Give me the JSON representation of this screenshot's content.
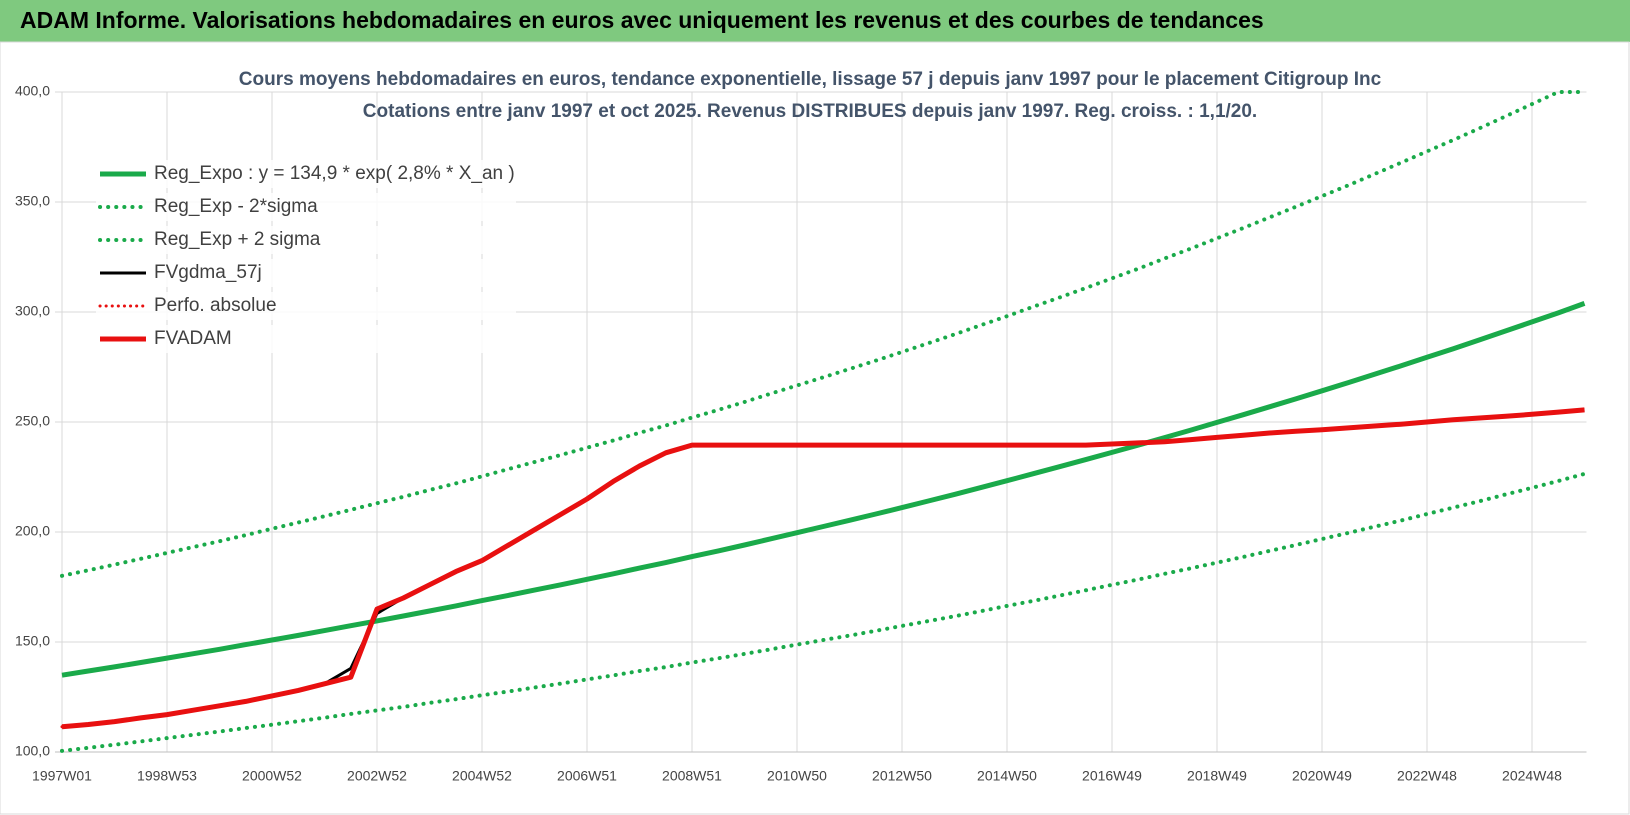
{
  "header": {
    "title": "ADAM Informe. Valorisations hebdomadaires en euros avec uniquement les revenus et des courbes de tendances"
  },
  "chart_data": {
    "type": "line",
    "title": "Cours moyens hebdomadaires en euros, tendance exponentielle, lissage 57 j depuis janv 1997 pour le placement Citigroup Inc",
    "subtitle": "Cotations entre janv 1997 et oct 2025. Revenus DISTRIBUES depuis janv 1997. Reg. croiss. : 1,1/20.",
    "categories": [
      "1997W01",
      null,
      null,
      null,
      "1998W53",
      null,
      null,
      null,
      "2000W52",
      null,
      null,
      null,
      "2002W52",
      null,
      null,
      null,
      "2004W52",
      null,
      null,
      null,
      "2006W51",
      null,
      null,
      null,
      "2008W51",
      null,
      null,
      null,
      "2010W50",
      null,
      null,
      null,
      "2012W50",
      null,
      null,
      null,
      "2014W50",
      null,
      null,
      null,
      "2016W49",
      null,
      null,
      null,
      "2018W49",
      null,
      null,
      null,
      "2020W49",
      null,
      null,
      null,
      "2022W48",
      null,
      null,
      null,
      "2024W48",
      null,
      null
    ],
    "ylim": [
      100,
      400
    ],
    "yticks": [
      {
        "value": 100,
        "label": "100,0"
      },
      {
        "value": 150,
        "label": "150,0"
      },
      {
        "value": 200,
        "label": "200,0"
      },
      {
        "value": 250,
        "label": "250,0"
      },
      {
        "value": 300,
        "label": "300,0"
      },
      {
        "value": 350,
        "label": "350,0"
      },
      {
        "value": 400,
        "label": "400,0"
      }
    ],
    "grid": true,
    "legend": "upper-left",
    "series": [
      {
        "name": "Reg_Expo : y = 134,9 * exp( 2,8% *  X_an )",
        "color": "#1aaa4a",
        "style": "solid",
        "width": 5,
        "values": [
          134.9,
          136.8,
          138.7,
          140.7,
          142.7,
          144.7,
          146.7,
          148.8,
          150.9,
          153.0,
          155.2,
          157.4,
          159.6,
          161.8,
          164.1,
          166.4,
          168.8,
          171.2,
          173.6,
          176.0,
          178.5,
          181.0,
          183.6,
          186.1,
          188.8,
          191.4,
          194.1,
          196.9,
          199.7,
          202.5,
          205.3,
          208.2,
          211.1,
          214.1,
          217.1,
          220.2,
          223.3,
          226.5,
          229.7,
          232.9,
          236.2,
          239.5,
          242.9,
          246.3,
          249.8,
          253.3,
          256.9,
          260.5,
          264.2,
          267.9,
          271.7,
          275.5,
          279.4,
          283.3,
          287.3,
          291.4,
          295.5,
          299.6,
          303.9
        ]
      },
      {
        "name": "Reg_Exp - 2*sigma",
        "color": "#1aaa4a",
        "style": "dotted",
        "width": 4,
        "values": [
          100.5,
          101.9,
          103.3,
          104.8,
          106.3,
          107.8,
          109.3,
          110.9,
          112.4,
          114.0,
          115.6,
          117.3,
          118.9,
          120.5,
          122.3,
          124.0,
          125.8,
          127.5,
          129.3,
          131.1,
          133.0,
          134.8,
          136.8,
          138.6,
          140.7,
          142.6,
          144.6,
          146.7,
          148.8,
          150.9,
          152.9,
          155.1,
          157.3,
          159.5,
          161.7,
          164.0,
          166.4,
          168.7,
          171.1,
          173.5,
          176.0,
          178.4,
          181.0,
          183.5,
          186.1,
          188.7,
          191.4,
          194.1,
          196.8,
          199.6,
          202.4,
          205.2,
          208.2,
          211.1,
          214.0,
          217.1,
          220.1,
          223.2,
          226.4
        ]
      },
      {
        "name": "Reg_Exp + 2 sigma",
        "color": "#1aaa4a",
        "style": "dotted",
        "width": 4,
        "values": [
          180.1,
          182.6,
          185.2,
          187.8,
          190.5,
          193.2,
          195.8,
          198.6,
          201.5,
          204.3,
          207.2,
          210.1,
          213.1,
          216.0,
          219.1,
          222.1,
          225.3,
          228.6,
          231.8,
          235.0,
          238.3,
          241.6,
          245.1,
          248.4,
          252.0,
          255.5,
          259.1,
          262.9,
          266.6,
          270.3,
          274.1,
          277.9,
          281.8,
          285.8,
          289.8,
          294.0,
          298.1,
          302.4,
          306.6,
          310.9,
          315.3,
          319.7,
          324.3,
          328.8,
          333.5,
          338.2,
          343.0,
          347.8,
          352.7,
          357.6,
          362.7,
          367.8,
          373.0,
          378.2,
          383.5,
          389.0,
          394.5,
          400,
          400
        ]
      },
      {
        "name": "FVgdma_57j",
        "color": "#000000",
        "style": "solid",
        "width": 3,
        "values": [
          111.5,
          112.5,
          113.8,
          115.5,
          117,
          119,
          121,
          123,
          125.5,
          128,
          131,
          138,
          163,
          170,
          176,
          182,
          187,
          194,
          201,
          208,
          215,
          223,
          230,
          236,
          239.5,
          239.5,
          239.5,
          239.5,
          239.5,
          239.5,
          239.5,
          239.5,
          239.5,
          239.5,
          239.5,
          239.5,
          239.5,
          239.5,
          239.5,
          239.5,
          240,
          240.5,
          241,
          242,
          243,
          244,
          245,
          245.8,
          246.5,
          247.3,
          248.2,
          249,
          250,
          251,
          251.8,
          252.6,
          253.5,
          254.5,
          255.5
        ]
      },
      {
        "name": "Perfo. absolue",
        "color": "#e81010",
        "style": "dotted",
        "width": 3,
        "values": [
          111.5,
          112.5,
          113.8,
          115.5,
          117,
          119,
          121,
          123,
          125.5,
          128,
          131,
          134,
          165,
          170,
          176,
          182,
          187,
          194,
          201,
          208,
          215,
          223,
          230,
          236,
          239.5,
          239.5,
          239.5,
          239.5,
          239.5,
          239.5,
          239.5,
          239.5,
          239.5,
          239.5,
          239.5,
          239.5,
          239.5,
          239.5,
          239.5,
          239.5,
          240,
          240.5,
          241,
          242,
          243,
          244,
          245,
          245.8,
          246.5,
          247.3,
          248.2,
          249,
          250,
          251,
          251.8,
          252.6,
          253.5,
          254.5,
          255.5
        ]
      },
      {
        "name": "FVADAM",
        "color": "#e81010",
        "style": "solid",
        "width": 5,
        "values": [
          111.5,
          112.5,
          113.8,
          115.5,
          117,
          119,
          121,
          123,
          125.5,
          128,
          131,
          134,
          165,
          170,
          176,
          182,
          187,
          194,
          201,
          208,
          215,
          223,
          230,
          236,
          239.5,
          239.5,
          239.5,
          239.5,
          239.5,
          239.5,
          239.5,
          239.5,
          239.5,
          239.5,
          239.5,
          239.5,
          239.5,
          239.5,
          239.5,
          239.5,
          240,
          240.5,
          241,
          242,
          243,
          244,
          245,
          245.8,
          246.5,
          247.3,
          248.2,
          249,
          250,
          251,
          251.8,
          252.6,
          253.5,
          254.5,
          255.5
        ]
      }
    ]
  }
}
